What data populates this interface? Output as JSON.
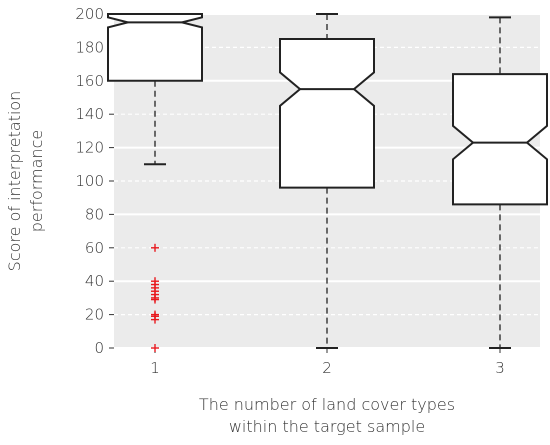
{
  "chart_data": {
    "type": "box",
    "notched": true,
    "xlabel": [
      "The number of land cover types",
      "within the target sample"
    ],
    "ylabel": [
      "Score of interpretation",
      "performance"
    ],
    "ylim": [
      0,
      200
    ],
    "yticks": [
      0,
      20,
      40,
      60,
      80,
      100,
      120,
      140,
      160,
      180,
      200
    ],
    "grid": true,
    "categories": [
      "1",
      "2",
      "3"
    ],
    "boxes": [
      {
        "category": "1",
        "whisker_low": 110,
        "q1": 160,
        "median": 195,
        "q3": 200,
        "whisker_high": 200,
        "notch_low": 192,
        "notch_high": 198,
        "outliers": [
          60,
          40,
          38,
          36,
          34,
          32,
          30,
          29,
          20,
          19,
          17,
          0
        ]
      },
      {
        "category": "2",
        "whisker_low": 0,
        "q1": 96,
        "median": 155,
        "q3": 185,
        "whisker_high": 200,
        "notch_low": 145,
        "notch_high": 165,
        "outliers": []
      },
      {
        "category": "3",
        "whisker_low": 0,
        "q1": 86,
        "median": 123,
        "q3": 164,
        "whisker_high": 198,
        "notch_low": 113,
        "notch_high": 133,
        "outliers": []
      }
    ],
    "colors": {
      "background": "#ebebeb",
      "grid": "#ffffff",
      "box": "#222222",
      "outlier": "#e8191e"
    }
  }
}
